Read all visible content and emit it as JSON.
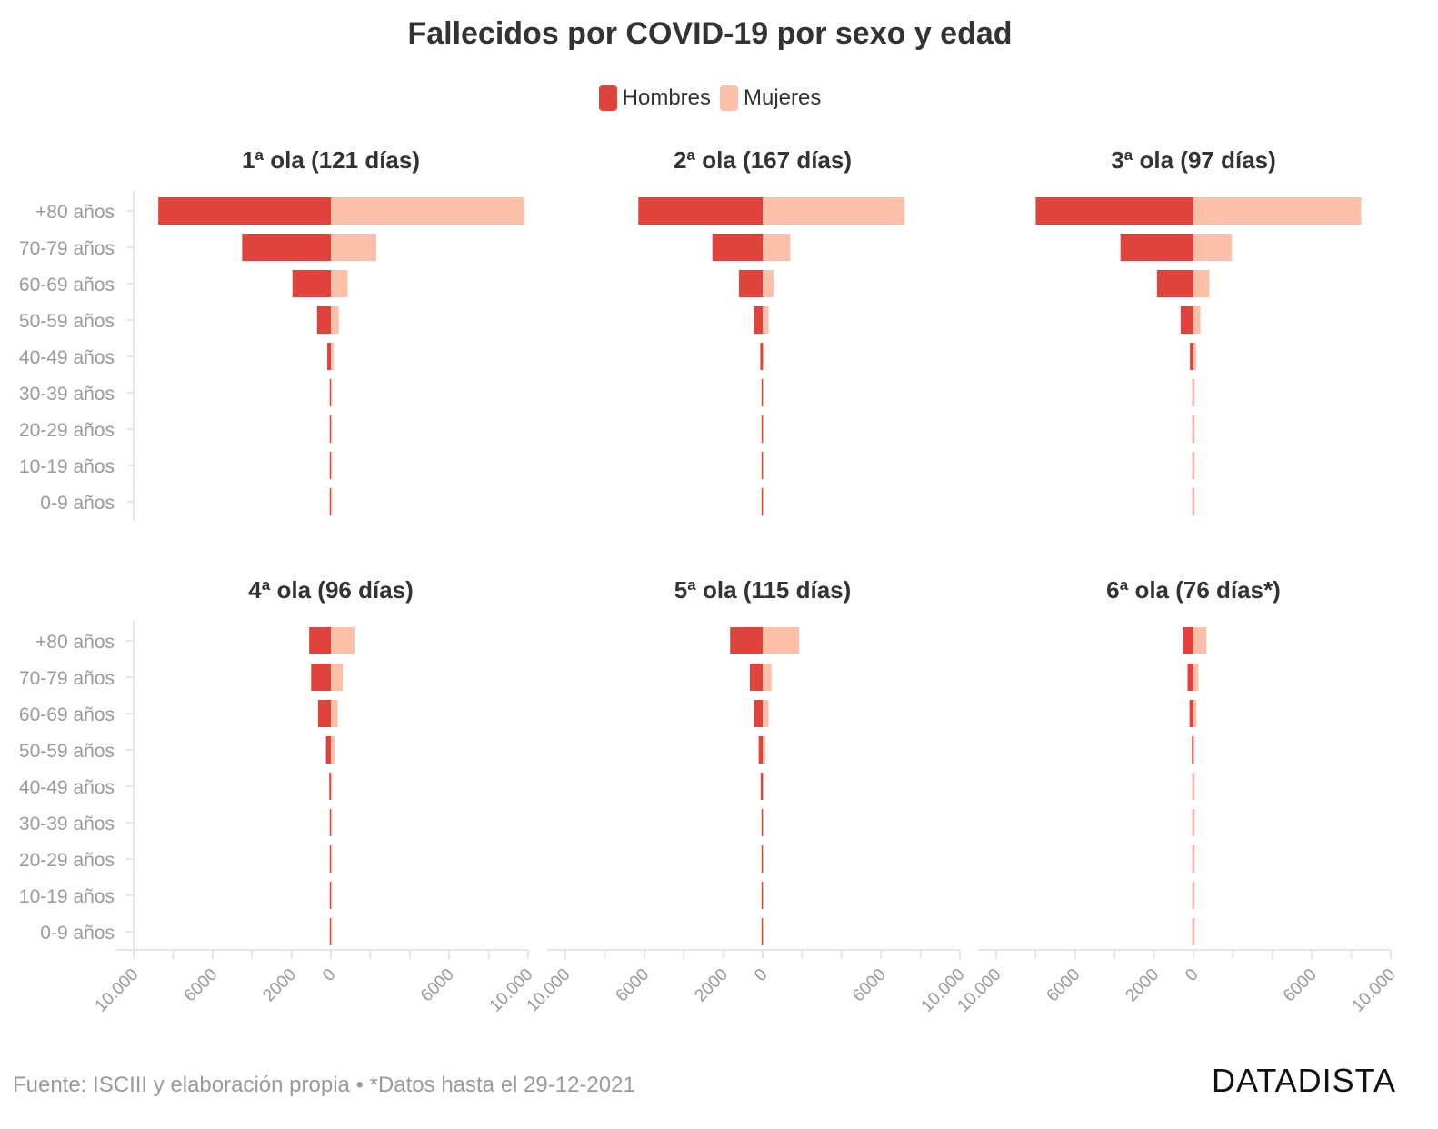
{
  "title": "Fallecidos por COVID-19 por sexo y edad",
  "legend": {
    "men_label": "Hombres",
    "women_label": "Mujeres"
  },
  "colors": {
    "men": "#e0433c",
    "women": "#fcbfa8"
  },
  "footer": {
    "source": "Fuente: ISCIII y elaboración propia • *Datos hasta el 29-12-2021",
    "brand": "DATADISTA"
  },
  "chart_data": {
    "type": "bar",
    "orientation": "horizontal-diverging",
    "categories": [
      "+80 años",
      "70-79 años",
      "60-69 años",
      "50-59 años",
      "40-49 años",
      "30-39 años",
      "20-29 años",
      "10-19 años",
      "0-9 años"
    ],
    "x_ticks": [
      "10.000",
      "6000",
      "2000",
      "0",
      "6000",
      "10.000"
    ],
    "xlim": [
      -10000,
      10000
    ],
    "panels": [
      {
        "title": "1ª ola (121 días)",
        "series": [
          {
            "name": "Hombres",
            "values": [
              8750,
              4500,
              1950,
              700,
              180,
              55,
              25,
              8,
              5
            ]
          },
          {
            "name": "Mujeres",
            "values": [
              9800,
              2300,
              850,
              400,
              130,
              45,
              20,
              6,
              4
            ]
          }
        ]
      },
      {
        "title": "2ª ola (167 días)",
        "series": [
          {
            "name": "Hombres",
            "values": [
              6300,
              2550,
              1200,
              450,
              120,
              30,
              12,
              5,
              3
            ]
          },
          {
            "name": "Mujeres",
            "values": [
              7200,
              1400,
              550,
              300,
              100,
              20,
              8,
              4,
              2
            ]
          }
        ]
      },
      {
        "title": "3ª ola (97 días)",
        "series": [
          {
            "name": "Hombres",
            "values": [
              8000,
              3700,
              1850,
              650,
              180,
              40,
              15,
              5,
              3
            ]
          },
          {
            "name": "Mujeres",
            "values": [
              8500,
              1950,
              800,
              350,
              130,
              30,
              10,
              4,
              2
            ]
          }
        ]
      },
      {
        "title": "4ª ola (96 días)",
        "series": [
          {
            "name": "Hombres",
            "values": [
              1100,
              1000,
              650,
              250,
              80,
              20,
              8,
              3,
              2
            ]
          },
          {
            "name": "Mujeres",
            "values": [
              1200,
              600,
              350,
              180,
              60,
              15,
              6,
              2,
              2
            ]
          }
        ]
      },
      {
        "title": "5ª ola (115 días)",
        "series": [
          {
            "name": "Hombres",
            "values": [
              1650,
              650,
              450,
              200,
              100,
              30,
              10,
              3,
              2
            ]
          },
          {
            "name": "Mujeres",
            "values": [
              1850,
              450,
              300,
              150,
              70,
              20,
              8,
              2,
              1
            ]
          }
        ]
      },
      {
        "title": "6ª ola (76 días*)",
        "series": [
          {
            "name": "Hombres",
            "values": [
              550,
              300,
              200,
              80,
              30,
              10,
              5,
              2,
              1
            ]
          },
          {
            "name": "Mujeres",
            "values": [
              650,
              250,
              150,
              60,
              25,
              8,
              4,
              1,
              1
            ]
          }
        ]
      }
    ]
  }
}
